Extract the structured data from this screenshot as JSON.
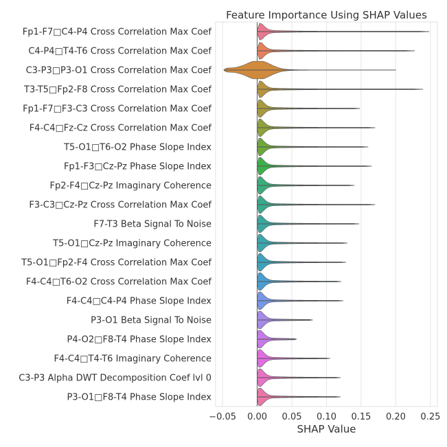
{
  "chart_data": {
    "type": "violin",
    "title": "Feature Importance Using SHAP Values",
    "xlabel": "SHAP Value",
    "ylabel": "",
    "xlim": [
      -0.06,
      0.26
    ],
    "xticks": [
      "−0.05",
      "0.00",
      "0.05",
      "0.10",
      "0.15",
      "0.20",
      "0.25"
    ],
    "xtick_values": [
      -0.05,
      0.0,
      0.05,
      0.1,
      0.15,
      0.2,
      0.25
    ],
    "grid": true,
    "features": [
      {
        "label": "Fp1-F7□C4-P4 Cross Correlation Max Coef",
        "min": 0.0,
        "max": 0.248,
        "color": "#e8788e"
      },
      {
        "label": "C4-P4□T4-T6 Cross Correlation Max Coef",
        "min": 0.0,
        "max": 0.227,
        "color": "#e4805c"
      },
      {
        "label": "C3-P3□P3-O1 Cross Correlation Max Coef",
        "min": -0.048,
        "max": 0.2,
        "color": "#cf8a3e"
      },
      {
        "label": "T3-T5□Fp2-F8 Cross Correlation Max Coef",
        "min": 0.0,
        "max": 0.239,
        "color": "#b79440"
      },
      {
        "label": "Fp1-F7□F3-C3 Cross Correlation Max Coef",
        "min": 0.0,
        "max": 0.148,
        "color": "#a89b3e"
      },
      {
        "label": "F4-C4□Fz-Cz Cross Correlation Max Coef",
        "min": 0.0,
        "max": 0.17,
        "color": "#8ea23a"
      },
      {
        "label": "T5-O1□T6-O2 Phase Slope Index",
        "min": 0.0,
        "max": 0.16,
        "color": "#6ea83c"
      },
      {
        "label": "Fp1-F3□Cz-Pz Phase Slope Index",
        "min": 0.0,
        "max": 0.165,
        "color": "#3db04b"
      },
      {
        "label": "Fp2-F4□Cz-Pz Imaginary Coherence",
        "min": 0.0,
        "max": 0.14,
        "color": "#3aad7a"
      },
      {
        "label": "F3-C3□Cz-Pz Cross Correlation Max Coef",
        "min": 0.0,
        "max": 0.17,
        "color": "#3aa98e"
      },
      {
        "label": "F7-T3 Beta Signal To Noise",
        "min": 0.0,
        "max": 0.147,
        "color": "#3aa79e"
      },
      {
        "label": "T5-O1□Cz-Pz Imaginary Coherence",
        "min": 0.0,
        "max": 0.13,
        "color": "#3ca6ae"
      },
      {
        "label": "T5-O1□Fp2-F4 Cross Correlation Max Coef",
        "min": 0.0,
        "max": 0.128,
        "color": "#3da3bb"
      },
      {
        "label": "F4-C4□T6-O2 Cross Correlation Max Coef",
        "min": 0.0,
        "max": 0.121,
        "color": "#4a9dd0"
      },
      {
        "label": "F4-C4□C4-P4 Phase Slope Index",
        "min": 0.0,
        "max": 0.124,
        "color": "#7797e6"
      },
      {
        "label": "P3-O1 Beta Signal To Noise",
        "min": 0.0,
        "max": 0.08,
        "color": "#a58ae8"
      },
      {
        "label": "P4-O2□F8-T4 Phase Slope Index",
        "min": 0.0,
        "max": 0.057,
        "color": "#c67ae6"
      },
      {
        "label": "F4-C4□T4-T6 Imaginary Coherence",
        "min": 0.0,
        "max": 0.105,
        "color": "#e06ee0"
      },
      {
        "label": "C3-P3 Alpha DWT Decomposition Coef lvl 0",
        "min": 0.0,
        "max": 0.12,
        "color": "#e872c4"
      },
      {
        "label": "P3-O1□F8-T4 Phase Slope Index",
        "min": 0.0,
        "max": 0.12,
        "color": "#e877a8"
      }
    ]
  }
}
